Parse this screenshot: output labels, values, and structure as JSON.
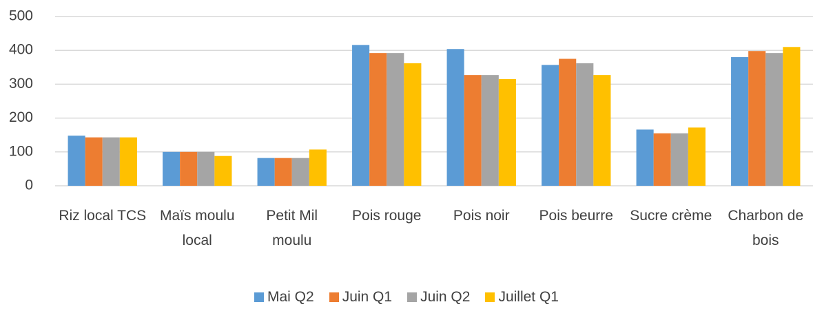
{
  "chart_data": {
    "type": "bar",
    "categories": [
      "Riz local TCS",
      "Maïs moulu local",
      "Petit Mil moulu",
      "Pois rouge",
      "Pois noir",
      "Pois beurre",
      "Sucre crème",
      "Charbon de bois"
    ],
    "series": [
      {
        "name": "Mai Q2",
        "color": "#5b9bd5",
        "values": [
          148,
          100,
          82,
          416,
          404,
          357,
          166,
          380
        ]
      },
      {
        "name": "Juin Q1",
        "color": "#ed7d31",
        "values": [
          143,
          100,
          82,
          392,
          327,
          375,
          155,
          398
        ]
      },
      {
        "name": "Juin Q2",
        "color": "#a5a5a5",
        "values": [
          143,
          100,
          82,
          392,
          327,
          362,
          155,
          392
        ]
      },
      {
        "name": "Juillet Q1",
        "color": "#ffc000",
        "values": [
          143,
          88,
          107,
          362,
          315,
          327,
          172,
          410
        ]
      }
    ],
    "ylim": [
      0,
      500
    ],
    "yticks": [
      0,
      100,
      200,
      300,
      400,
      500
    ],
    "grid": true,
    "legend": "bottom"
  }
}
